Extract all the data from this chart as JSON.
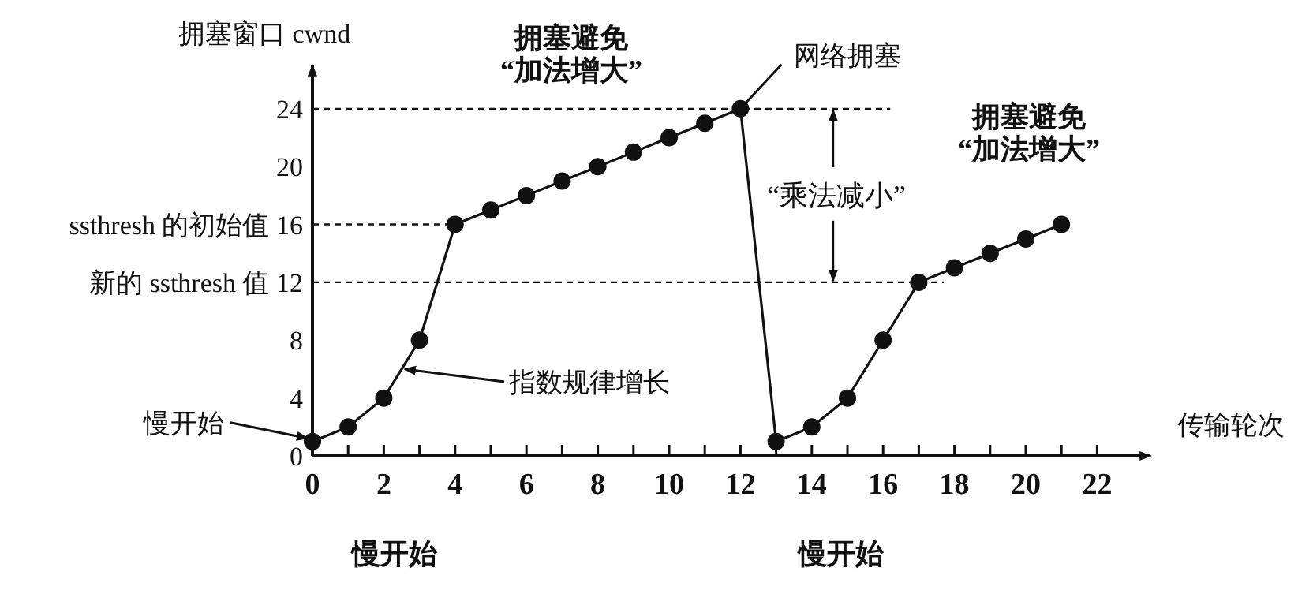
{
  "chart_data": {
    "type": "line",
    "xlabel": "传输轮次",
    "ylabel": "拥塞窗口 cwnd",
    "x": [
      0,
      1,
      2,
      3,
      4,
      5,
      6,
      7,
      8,
      9,
      10,
      11,
      12,
      13,
      14,
      15,
      16,
      17,
      18,
      19,
      20,
      21
    ],
    "series": [
      {
        "color": "#111111",
        "values": [
          1,
          2,
          4,
          8,
          16,
          17,
          18,
          19,
          20,
          21,
          22,
          23,
          24,
          1,
          2,
          4,
          8,
          12,
          13,
          14,
          15,
          16
        ]
      }
    ],
    "xlim": [
      0,
      23.5
    ],
    "ylim": [
      0,
      27
    ],
    "xticks": [
      0,
      {
        "value": 1,
        "label": null
      },
      2,
      {
        "value": 3,
        "label": null
      },
      4,
      {
        "value": 5,
        "label": null
      },
      6,
      {
        "value": 7,
        "label": null
      },
      8,
      {
        "value": 9,
        "label": null
      },
      10,
      {
        "value": 11,
        "label": null
      },
      12,
      {
        "value": 13,
        "label": null
      },
      14,
      {
        "value": 15,
        "label": null
      },
      16,
      {
        "value": 17,
        "label": null
      },
      18,
      {
        "value": 19,
        "label": null
      },
      20,
      {
        "value": 21,
        "label": null
      },
      22
    ],
    "yticks": [
      0,
      4,
      8,
      {
        "value": 12,
        "label": "新的 ssthresh 值 12"
      },
      {
        "value": 16,
        "label": "ssthresh 的初始值 16"
      },
      20,
      24
    ],
    "ref_lines": [
      {
        "axis": "y",
        "value": 24,
        "line_style": "dashed"
      },
      {
        "axis": "y",
        "value": 16,
        "line_style": "dashed"
      },
      {
        "axis": "y",
        "value": 12,
        "line_style": "dashed"
      }
    ],
    "annotations": [
      "拥塞避免\n“加法增大”",
      {
        "text": "网络拥塞",
        "x": 12,
        "y": 24
      },
      {
        "text": "“乘法减小”",
        "x": 14.6,
        "y": 24
      },
      "拥塞避免\n“加法增大”",
      {
        "text": "慢开始",
        "x": 0,
        "y": 1
      },
      {
        "text": "指数规律增长",
        "x": 2.5,
        "y": 6
      },
      "慢开始",
      "慢开始"
    ],
    "marker": "circle",
    "line_style": "solid"
  }
}
